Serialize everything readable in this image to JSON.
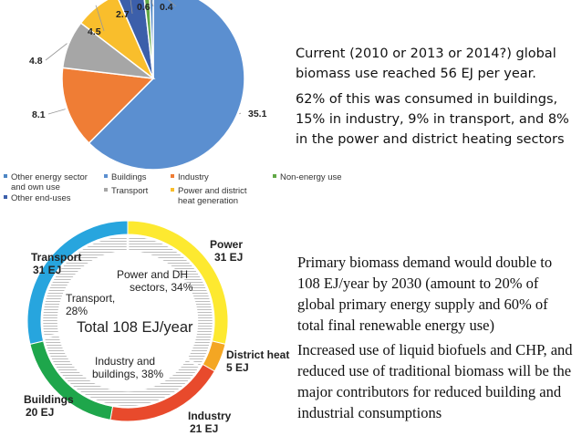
{
  "chart_data": [
    {
      "type": "pie",
      "unit": "",
      "slices": [
        {
          "name": "Buildings",
          "value": 35.1,
          "label": "35.1",
          "color": "#5b8fd0"
        },
        {
          "name": "Industry",
          "value": 8.1,
          "label": "8.1",
          "color": "#ef7d35"
        },
        {
          "name": "Transport",
          "value": 4.8,
          "label": "4.8",
          "color": "#a6a6a6"
        },
        {
          "name": "Power and district heat generation",
          "value": 4.5,
          "label": "4.5",
          "color": "#f9be2c"
        },
        {
          "name": "Other end-uses",
          "value": 2.7,
          "label": "2.7",
          "color": "#3c5faa"
        },
        {
          "name": "Non-energy use",
          "value": 0.6,
          "label": "0.6",
          "color": "#61a846"
        },
        {
          "name": "Other energy sector and own use",
          "value": 0.4,
          "label": "0.4",
          "color": "#4e86c4"
        }
      ],
      "legend": {
        "placement": "bottom",
        "items": [
          {
            "text": "Other energy sector",
            "text2": "and own use",
            "color": "#4e86c4"
          },
          {
            "text": "Buildings",
            "color": "#5b8fd0"
          },
          {
            "text": "Industry",
            "color": "#ef7d35"
          },
          {
            "text": "Non-energy use",
            "color": "#61a846"
          },
          {
            "text": "Other end-uses",
            "color": "#3c5faa"
          },
          {
            "text": "Transport",
            "color": "#a6a6a6"
          },
          {
            "text": "Power and district",
            "text2": "heat generation",
            "color": "#f9be2c"
          }
        ]
      }
    },
    {
      "type": "donut",
      "center_label": "Total 108 EJ/year",
      "outer_ring": [
        {
          "name": "Power",
          "value": 31,
          "label": "31 EJ",
          "color": "#fde930"
        },
        {
          "name": "District heat",
          "value": 5,
          "label": "5 EJ",
          "color": "#f4a623"
        },
        {
          "name": "Industry",
          "value": 21,
          "label": "21 EJ",
          "color": "#e84a2c"
        },
        {
          "name": "Buildings",
          "value": 20,
          "label": "20 EJ",
          "color": "#1ea64b"
        },
        {
          "name": "Transport",
          "value": 31,
          "label": "31 EJ",
          "color": "#27a5de"
        }
      ],
      "inner_ring": [
        {
          "name": "Power and DH sectors",
          "label1": "Power and DH",
          "label2": "sectors, 34%",
          "value": 34
        },
        {
          "name": "Industry and buildings",
          "label1": "Industry and",
          "label2": "buildings, 38%",
          "value": 38
        },
        {
          "name": "Transport",
          "label1": "Transport,",
          "label2": "28%",
          "value": 28
        }
      ]
    }
  ],
  "text": {
    "p1": "Current (2010 or 2013 or 2014?) global biomass use reached 56 EJ per year.",
    "p2": "62% of this was consumed in buildings, 15% in industry, 9% in transport, and 8% in the power and district heating sectors",
    "p3": "Primary biomass demand would double to 108 EJ/year by 2030 (amount to 20% of global primary energy supply and  60% of total final renewable energy use)",
    "p4": "Increased use of liquid biofuels and CHP, and reduced use of traditional biomass will be the major contributors for reduced building and industrial consumptions"
  }
}
